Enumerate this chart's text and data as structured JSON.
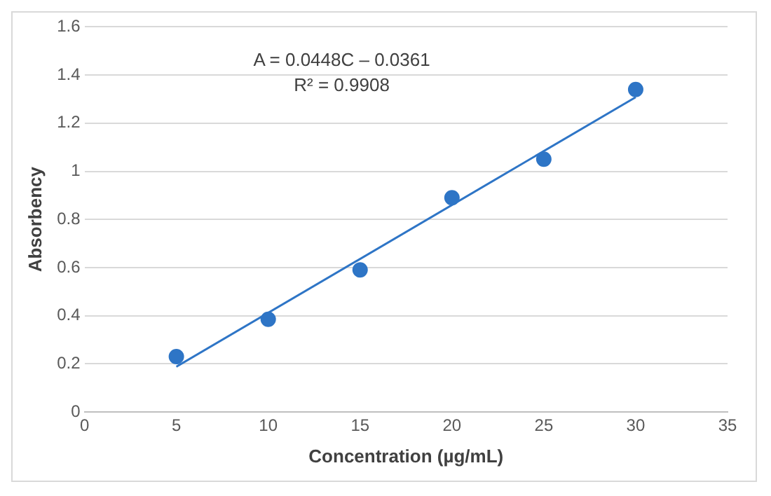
{
  "chart_data": {
    "type": "scatter",
    "xlabel": "Concentration (µg/mL)",
    "ylabel": "Absorbency",
    "xlim": [
      0,
      35
    ],
    "xticks": [
      0,
      5,
      10,
      15,
      20,
      25,
      30,
      35
    ],
    "ylim": [
      0,
      1.6
    ],
    "yticks": [
      0,
      0.2,
      0.4,
      0.6,
      0.8,
      1,
      1.2,
      1.4,
      1.6
    ],
    "grid": "y",
    "legend": false,
    "annotations": [
      "A = 0.0448C – 0.0361",
      "R² = 0.9908"
    ],
    "series": [
      {
        "type": "scatter",
        "color": "#2e75c6",
        "marker": "circle",
        "x": [
          5,
          10,
          15,
          20,
          25,
          30
        ],
        "values": [
          0.23,
          0.385,
          0.59,
          0.89,
          1.05,
          1.34
        ]
      },
      {
        "type": "line",
        "color": "#2e75c6",
        "marker": "none",
        "line_style": "solid",
        "x": [
          5,
          30
        ],
        "values": [
          0.188,
          1.308
        ]
      }
    ]
  }
}
